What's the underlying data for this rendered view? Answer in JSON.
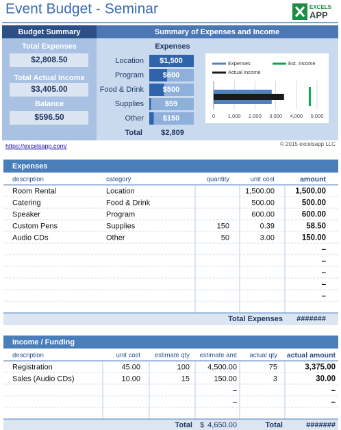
{
  "header": {
    "title": "Event Budget - Seminar",
    "logo_top": "EXCELS",
    "logo_bottom": "APP"
  },
  "summary": {
    "left_title": "Budget Summary",
    "right_title": "Summary of Expenses and Income",
    "items": [
      {
        "label": "Total Expenses",
        "value": "$2,808.50"
      },
      {
        "label": "Total Actual Income",
        "value": "$3,405.00"
      },
      {
        "label": "Balance",
        "value": "$596.50"
      }
    ],
    "expenses": {
      "title": "Expenses",
      "categories": [
        "Location",
        "Program",
        "Food & Drink",
        "Supplies",
        "Other"
      ],
      "values": [
        1500,
        600,
        500,
        59,
        150
      ],
      "value_labels": [
        "$1,500",
        "$600",
        "$500",
        "$59",
        "$150"
      ],
      "color": "#2f64ad",
      "total_label": "Total",
      "total": "$2,809"
    }
  },
  "chart_data": {
    "type": "bar",
    "orientation": "horizontal",
    "series": [
      {
        "name": "Expenses",
        "color": "#4f81bd",
        "values": [
          2808.5
        ]
      },
      {
        "name": "Actual Income",
        "color": "#1a1a1a",
        "values": [
          3405
        ]
      },
      {
        "name": "Est. Income",
        "color": "#00a651",
        "values": [
          4650
        ],
        "style": "line"
      }
    ],
    "xlim": [
      0,
      5000
    ],
    "xticks": [
      0,
      {
        "value": 1000,
        "label": "1,000"
      },
      {
        "value": 2000,
        "label": "2,000"
      },
      {
        "value": 3000,
        "label": "3,000"
      },
      {
        "value": 4000,
        "label": "4,000"
      },
      {
        "value": 5000,
        "label": "5,000"
      }
    ],
    "grid": true
  },
  "link": "https://excelsapp.com/",
  "copyright": "© 2015 excelsapp LLC",
  "expenses_table": {
    "title": "Expenses",
    "columns": [
      "description",
      "category",
      "quantity",
      "unit cost",
      "amount"
    ],
    "rows": [
      {
        "description": "Room Rental",
        "category": "Location",
        "unit_cost": "1,500.00",
        "amount": "1,500.00"
      },
      {
        "description": "Catering",
        "category": "Food & Drink",
        "unit_cost": "500.00",
        "amount": "500.00"
      },
      {
        "description": "Speaker",
        "category": "Program",
        "unit_cost": "600.00",
        "amount": "600.00"
      },
      {
        "description": "Custom Pens",
        "category": "Supplies",
        "quantity": "150",
        "unit_cost": "0.39",
        "amount": "58.50"
      },
      {
        "description": "Audio CDs",
        "category": "Other",
        "quantity": "50",
        "unit_cost": "3.00",
        "amount": "150.00"
      },
      {
        "amount": "–"
      },
      {
        "amount": "–"
      },
      {
        "amount": "–"
      },
      {
        "amount": "–"
      },
      {
        "amount": "–"
      }
    ],
    "total_label": "Total Expenses",
    "total": "#######"
  },
  "income_table": {
    "title": "Income / Funding",
    "columns": [
      "description",
      "unit cost",
      "estimate qty",
      "estimate amt",
      "actual qty",
      "actual amount"
    ],
    "rows": [
      {
        "description": "Registration",
        "unit_cost": "45.00",
        "estimate_qty": "100",
        "estimate_amt": "4,500.00",
        "actual_qty": "75",
        "actual_amount": "3,375.00"
      },
      {
        "description": "Sales (Audio CDs)",
        "unit_cost": "10.00",
        "estimate_qty": "15",
        "estimate_amt": "150.00",
        "actual_qty": "3",
        "actual_amount": "30.00"
      },
      {
        "estimate_amt": "–",
        "actual_amount": "–"
      },
      {
        "estimate_amt": "–",
        "actual_amount": "–"
      }
    ],
    "total_label": "Total",
    "total_est_currency": "$",
    "total_est": "4,650.00",
    "actual_total_label": "Total",
    "actual_total": "#######"
  }
}
